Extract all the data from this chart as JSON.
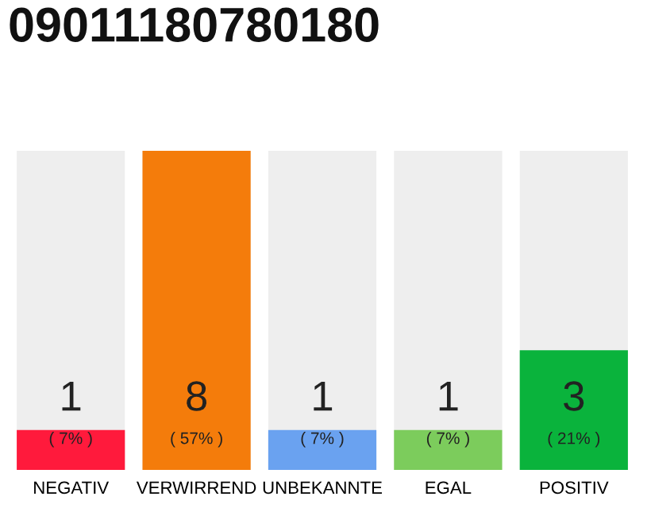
{
  "chart_data": {
    "type": "bar",
    "title": "09011180780180",
    "categories": [
      "NEGATIV",
      "VERWIRREND",
      "UNBEKANNTE",
      "EGAL",
      "POSITIV"
    ],
    "values": [
      1,
      8,
      1,
      1,
      3
    ],
    "colors": [
      "#ff1a3c",
      "#f47c0b",
      "#6aa2f0",
      "#7ccc5c",
      "#0ab33c"
    ],
    "value_labels": [
      "1",
      "8",
      "1",
      "1",
      "3"
    ],
    "annotations": [
      "( 7% )",
      "( 57% )",
      "( 7% )",
      "( 7% )",
      "( 21% )"
    ],
    "grid": false,
    "legend": false
  }
}
